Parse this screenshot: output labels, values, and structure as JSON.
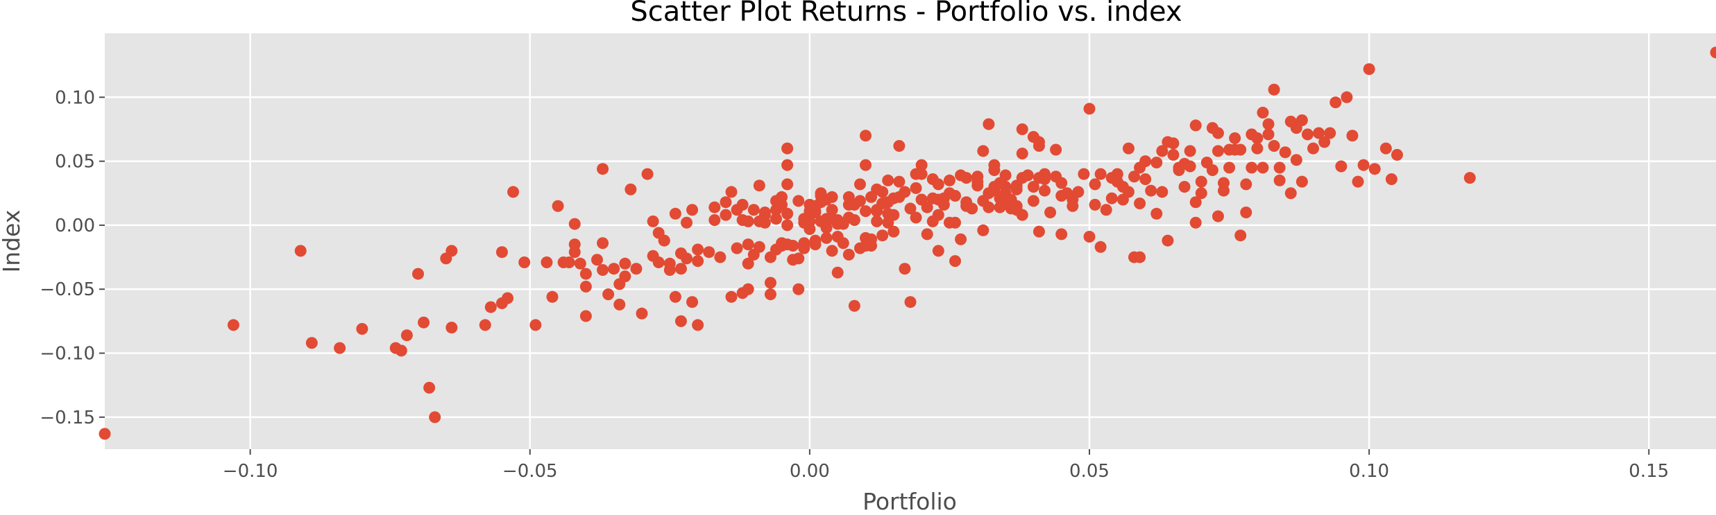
{
  "chart_data": {
    "type": "scatter",
    "title": "Scatter Plot Returns - Portfolio vs. index",
    "xlabel": "Portfolio",
    "ylabel": "Index",
    "xlim": [
      -0.126,
      0.162
    ],
    "ylim": [
      -0.175,
      0.15
    ],
    "xticks": [
      -0.1,
      -0.05,
      0.0,
      0.05,
      0.1,
      0.15
    ],
    "xtick_labels": [
      "−0.10",
      "−0.05",
      "0.00",
      "0.05",
      "0.10",
      "0.15"
    ],
    "yticks": [
      -0.15,
      -0.1,
      -0.05,
      0.0,
      0.05,
      0.1
    ],
    "ytick_labels": [
      "−0.15",
      "−0.10",
      "−0.05",
      "0.00",
      "0.05",
      "0.10"
    ],
    "grid": true,
    "style": "ggplot",
    "colors": {
      "background": "#e5e5e5",
      "points": "#e24a33",
      "grid": "#ffffff"
    },
    "points": [
      [
        -0.126,
        -0.163
      ],
      [
        -0.103,
        -0.078
      ],
      [
        -0.091,
        -0.02
      ],
      [
        -0.089,
        -0.092
      ],
      [
        -0.084,
        -0.096
      ],
      [
        -0.08,
        -0.081
      ],
      [
        -0.074,
        -0.096
      ],
      [
        -0.073,
        -0.098
      ],
      [
        -0.072,
        -0.086
      ],
      [
        -0.07,
        -0.038
      ],
      [
        -0.069,
        -0.076
      ],
      [
        -0.068,
        -0.127
      ],
      [
        -0.067,
        -0.15
      ],
      [
        -0.065,
        -0.026
      ],
      [
        -0.064,
        -0.02
      ],
      [
        -0.064,
        -0.08
      ],
      [
        -0.058,
        -0.078
      ],
      [
        -0.057,
        -0.064
      ],
      [
        -0.055,
        -0.021
      ],
      [
        -0.055,
        -0.061
      ],
      [
        -0.054,
        -0.057
      ],
      [
        -0.053,
        0.026
      ],
      [
        -0.051,
        -0.029
      ],
      [
        -0.049,
        -0.078
      ],
      [
        -0.047,
        -0.029
      ],
      [
        -0.046,
        -0.056
      ],
      [
        -0.045,
        0.015
      ],
      [
        -0.044,
        -0.029
      ],
      [
        -0.043,
        -0.029
      ],
      [
        -0.042,
        0.001
      ],
      [
        -0.042,
        -0.015
      ],
      [
        -0.042,
        -0.021
      ],
      [
        -0.041,
        -0.03
      ],
      [
        -0.04,
        -0.038
      ],
      [
        -0.04,
        -0.048
      ],
      [
        -0.04,
        -0.071
      ],
      [
        -0.038,
        -0.027
      ],
      [
        -0.037,
        -0.014
      ],
      [
        -0.037,
        -0.035
      ],
      [
        -0.037,
        0.044
      ],
      [
        -0.036,
        -0.054
      ],
      [
        -0.035,
        -0.034
      ],
      [
        -0.034,
        -0.046
      ],
      [
        -0.034,
        -0.062
      ],
      [
        -0.033,
        -0.04
      ],
      [
        -0.033,
        -0.03
      ],
      [
        -0.032,
        0.028
      ],
      [
        -0.031,
        -0.034
      ],
      [
        -0.03,
        -0.069
      ],
      [
        -0.029,
        0.04
      ],
      [
        -0.028,
        0.003
      ],
      [
        -0.028,
        -0.024
      ],
      [
        -0.027,
        -0.029
      ],
      [
        -0.027,
        -0.006
      ],
      [
        -0.026,
        -0.012
      ],
      [
        -0.026,
        -0.012
      ],
      [
        -0.025,
        -0.035
      ],
      [
        -0.025,
        -0.03
      ],
      [
        -0.024,
        -0.056
      ],
      [
        -0.024,
        0.009
      ],
      [
        -0.023,
        -0.022
      ],
      [
        -0.023,
        -0.034
      ],
      [
        -0.023,
        -0.075
      ],
      [
        -0.022,
        -0.026
      ],
      [
        -0.022,
        0.002
      ],
      [
        -0.021,
        0.012
      ],
      [
        -0.021,
        -0.06
      ],
      [
        -0.02,
        -0.019
      ],
      [
        -0.02,
        -0.078
      ],
      [
        -0.02,
        -0.028
      ],
      [
        -0.018,
        -0.021
      ],
      [
        -0.017,
        0.004
      ],
      [
        -0.017,
        0.014
      ],
      [
        -0.016,
        -0.025
      ],
      [
        -0.015,
        0.008
      ],
      [
        -0.015,
        0.018
      ],
      [
        -0.014,
        0.026
      ],
      [
        -0.014,
        -0.056
      ],
      [
        -0.013,
        -0.018
      ],
      [
        -0.013,
        0.012
      ],
      [
        -0.012,
        0.004
      ],
      [
        -0.012,
        0.016
      ],
      [
        -0.012,
        -0.053
      ],
      [
        -0.011,
        -0.05
      ],
      [
        -0.011,
        -0.015
      ],
      [
        -0.011,
        -0.03
      ],
      [
        -0.011,
        0.003
      ],
      [
        -0.01,
        0.012
      ],
      [
        -0.01,
        -0.023
      ],
      [
        -0.009,
        0.003
      ],
      [
        -0.009,
        0.031
      ],
      [
        -0.009,
        -0.017
      ],
      [
        -0.008,
        0.01
      ],
      [
        -0.008,
        0.008
      ],
      [
        -0.008,
        0.002
      ],
      [
        -0.007,
        -0.025
      ],
      [
        -0.007,
        -0.045
      ],
      [
        -0.007,
        -0.054
      ],
      [
        -0.006,
        -0.019
      ],
      [
        -0.006,
        0.005
      ],
      [
        -0.006,
        0.012
      ],
      [
        -0.006,
        0.019
      ],
      [
        -0.005,
        0.022
      ],
      [
        -0.005,
        0.016
      ],
      [
        -0.005,
        -0.014
      ],
      [
        -0.005,
        -0.016
      ],
      [
        -0.004,
        0.009
      ],
      [
        -0.004,
        0.0
      ],
      [
        -0.004,
        -0.015
      ],
      [
        -0.004,
        0.047
      ],
      [
        -0.004,
        0.06
      ],
      [
        -0.004,
        0.032
      ],
      [
        -0.003,
        -0.016
      ],
      [
        -0.003,
        -0.027
      ],
      [
        -0.002,
        0.019
      ],
      [
        -0.002,
        -0.05
      ],
      [
        -0.002,
        -0.026
      ],
      [
        -0.001,
        0.002
      ],
      [
        -0.001,
        -0.014
      ],
      [
        -0.001,
        0.005
      ],
      [
        -0.001,
        -0.018
      ],
      [
        -0.0,
        0.003
      ],
      [
        0.0,
        -0.003
      ],
      [
        0.0,
        0.016
      ],
      [
        0.0,
        0.011
      ],
      [
        0.001,
        0.01
      ],
      [
        0.001,
        0.011
      ],
      [
        0.001,
        -0.012
      ],
      [
        0.001,
        0.015
      ],
      [
        0.001,
        -0.015
      ],
      [
        0.002,
        0.003
      ],
      [
        0.002,
        0.018
      ],
      [
        0.002,
        0.023
      ],
      [
        0.002,
        0.025
      ],
      [
        0.003,
        0.005
      ],
      [
        0.003,
        -0.002
      ],
      [
        0.003,
        0.02
      ],
      [
        0.003,
        -0.01
      ],
      [
        0.004,
        -0.02
      ],
      [
        0.004,
        0.005
      ],
      [
        0.004,
        0.012
      ],
      [
        0.004,
        0.022
      ],
      [
        0.005,
        -0.037
      ],
      [
        0.005,
        0.001
      ],
      [
        0.005,
        -0.009
      ],
      [
        0.005,
        0.004
      ],
      [
        0.006,
        -0.014
      ],
      [
        0.006,
        0.001
      ],
      [
        0.007,
        0.022
      ],
      [
        0.007,
        0.016
      ],
      [
        0.007,
        0.006
      ],
      [
        0.007,
        -0.023
      ],
      [
        0.008,
        -0.063
      ],
      [
        0.008,
        0.004
      ],
      [
        0.008,
        0.016
      ],
      [
        0.009,
        -0.018
      ],
      [
        0.009,
        0.019
      ],
      [
        0.009,
        0.032
      ],
      [
        0.01,
        -0.016
      ],
      [
        0.01,
        -0.01
      ],
      [
        0.01,
        0.011
      ],
      [
        0.01,
        0.07
      ],
      [
        0.01,
        0.047
      ],
      [
        0.011,
        0.022
      ],
      [
        0.011,
        -0.016
      ],
      [
        0.011,
        -0.011
      ],
      [
        0.012,
        0.012
      ],
      [
        0.012,
        0.011
      ],
      [
        0.012,
        0.003
      ],
      [
        0.012,
        0.028
      ],
      [
        0.013,
        0.026
      ],
      [
        0.013,
        0.017
      ],
      [
        0.013,
        0.017
      ],
      [
        0.013,
        -0.008
      ],
      [
        0.014,
        0.035
      ],
      [
        0.014,
        0.002
      ],
      [
        0.014,
        0.018
      ],
      [
        0.014,
        0.009
      ],
      [
        0.015,
        0.008
      ],
      [
        0.015,
        0.021
      ],
      [
        0.015,
        -0.005
      ],
      [
        0.016,
        0.034
      ],
      [
        0.016,
        0.022
      ],
      [
        0.016,
        0.062
      ],
      [
        0.017,
        -0.034
      ],
      [
        0.017,
        0.026
      ],
      [
        0.018,
        -0.06
      ],
      [
        0.018,
        0.013
      ],
      [
        0.019,
        0.006
      ],
      [
        0.019,
        0.04
      ],
      [
        0.019,
        0.029
      ],
      [
        0.02,
        0.047
      ],
      [
        0.02,
        0.04
      ],
      [
        0.02,
        0.02
      ],
      [
        0.02,
        0.02
      ],
      [
        0.021,
        -0.007
      ],
      [
        0.021,
        0.014
      ],
      [
        0.022,
        0.036
      ],
      [
        0.022,
        0.021
      ],
      [
        0.022,
        0.003
      ],
      [
        0.023,
        -0.02
      ],
      [
        0.023,
        0.008
      ],
      [
        0.023,
        0.032
      ],
      [
        0.023,
        0.02
      ],
      [
        0.024,
        0.021
      ],
      [
        0.024,
        0.016
      ],
      [
        0.025,
        0.002
      ],
      [
        0.025,
        0.025
      ],
      [
        0.025,
        0.035
      ],
      [
        0.026,
        0.023
      ],
      [
        0.026,
        0.002
      ],
      [
        0.026,
        -0.028
      ],
      [
        0.027,
        -0.011
      ],
      [
        0.027,
        0.039
      ],
      [
        0.028,
        0.037
      ],
      [
        0.028,
        0.015
      ],
      [
        0.028,
        0.018
      ],
      [
        0.029,
        0.013
      ],
      [
        0.03,
        0.031
      ],
      [
        0.03,
        0.034
      ],
      [
        0.03,
        0.038
      ],
      [
        0.031,
        -0.004
      ],
      [
        0.031,
        0.058
      ],
      [
        0.031,
        0.019
      ],
      [
        0.032,
        0.079
      ],
      [
        0.032,
        0.014
      ],
      [
        0.032,
        0.025
      ],
      [
        0.033,
        0.03
      ],
      [
        0.033,
        0.043
      ],
      [
        0.033,
        0.047
      ],
      [
        0.033,
        0.027
      ],
      [
        0.034,
        0.021
      ],
      [
        0.034,
        0.033
      ],
      [
        0.034,
        0.014
      ],
      [
        0.035,
        0.03
      ],
      [
        0.035,
        0.025
      ],
      [
        0.035,
        0.039
      ],
      [
        0.035,
        0.017
      ],
      [
        0.036,
        0.02
      ],
      [
        0.036,
        0.013
      ],
      [
        0.037,
        0.031
      ],
      [
        0.037,
        0.012
      ],
      [
        0.037,
        0.028
      ],
      [
        0.037,
        0.015
      ],
      [
        0.038,
        0.075
      ],
      [
        0.038,
        0.056
      ],
      [
        0.038,
        0.008
      ],
      [
        0.038,
        0.037
      ],
      [
        0.039,
        0.039
      ],
      [
        0.04,
        0.03
      ],
      [
        0.04,
        0.019
      ],
      [
        0.04,
        0.069
      ],
      [
        0.041,
        -0.005
      ],
      [
        0.041,
        0.037
      ],
      [
        0.041,
        0.062
      ],
      [
        0.041,
        0.065
      ],
      [
        0.042,
        0.027
      ],
      [
        0.042,
        0.036
      ],
      [
        0.042,
        0.04
      ],
      [
        0.043,
        0.01
      ],
      [
        0.044,
        0.059
      ],
      [
        0.044,
        0.038
      ],
      [
        0.045,
        0.023
      ],
      [
        0.045,
        0.033
      ],
      [
        0.045,
        -0.007
      ],
      [
        0.046,
        0.025
      ],
      [
        0.047,
        0.02
      ],
      [
        0.047,
        0.015
      ],
      [
        0.048,
        0.026
      ],
      [
        0.049,
        0.04
      ],
      [
        0.05,
        -0.009
      ],
      [
        0.05,
        0.091
      ],
      [
        0.051,
        0.032
      ],
      [
        0.051,
        0.016
      ],
      [
        0.052,
        -0.017
      ],
      [
        0.052,
        0.04
      ],
      [
        0.053,
        0.012
      ],
      [
        0.054,
        0.021
      ],
      [
        0.054,
        0.037
      ],
      [
        0.055,
        0.034
      ],
      [
        0.055,
        0.04
      ],
      [
        0.056,
        0.02
      ],
      [
        0.056,
        0.03
      ],
      [
        0.057,
        0.026
      ],
      [
        0.057,
        0.06
      ],
      [
        0.058,
        0.038
      ],
      [
        0.058,
        -0.025
      ],
      [
        0.059,
        0.017
      ],
      [
        0.059,
        0.045
      ],
      [
        0.059,
        -0.025
      ],
      [
        0.06,
        0.036
      ],
      [
        0.06,
        0.05
      ],
      [
        0.061,
        0.027
      ],
      [
        0.062,
        0.009
      ],
      [
        0.062,
        0.049
      ],
      [
        0.063,
        0.026
      ],
      [
        0.063,
        0.058
      ],
      [
        0.064,
        0.065
      ],
      [
        0.064,
        -0.012
      ],
      [
        0.065,
        0.064
      ],
      [
        0.065,
        0.055
      ],
      [
        0.066,
        0.045
      ],
      [
        0.066,
        0.043
      ],
      [
        0.067,
        0.048
      ],
      [
        0.067,
        0.03
      ],
      [
        0.068,
        0.058
      ],
      [
        0.068,
        0.046
      ],
      [
        0.069,
        0.002
      ],
      [
        0.069,
        0.078
      ],
      [
        0.069,
        0.018
      ],
      [
        0.07,
        0.025
      ],
      [
        0.07,
        0.034
      ],
      [
        0.071,
        0.049
      ],
      [
        0.072,
        0.043
      ],
      [
        0.072,
        0.076
      ],
      [
        0.073,
        0.072
      ],
      [
        0.073,
        0.058
      ],
      [
        0.073,
        0.007
      ],
      [
        0.074,
        0.033
      ],
      [
        0.074,
        0.027
      ],
      [
        0.075,
        0.059
      ],
      [
        0.075,
        0.045
      ],
      [
        0.076,
        0.068
      ],
      [
        0.076,
        0.059
      ],
      [
        0.077,
        0.059
      ],
      [
        0.077,
        -0.008
      ],
      [
        0.078,
        0.01
      ],
      [
        0.078,
        0.032
      ],
      [
        0.079,
        0.045
      ],
      [
        0.079,
        0.071
      ],
      [
        0.08,
        0.06
      ],
      [
        0.08,
        0.068
      ],
      [
        0.081,
        0.088
      ],
      [
        0.081,
        0.045
      ],
      [
        0.082,
        0.071
      ],
      [
        0.082,
        0.079
      ],
      [
        0.083,
        0.062
      ],
      [
        0.083,
        0.106
      ],
      [
        0.084,
        0.045
      ],
      [
        0.084,
        0.035
      ],
      [
        0.085,
        0.057
      ],
      [
        0.086,
        0.081
      ],
      [
        0.086,
        0.025
      ],
      [
        0.087,
        0.076
      ],
      [
        0.087,
        0.051
      ],
      [
        0.088,
        0.034
      ],
      [
        0.088,
        0.082
      ],
      [
        0.089,
        0.071
      ],
      [
        0.09,
        0.06
      ],
      [
        0.091,
        0.072
      ],
      [
        0.092,
        0.065
      ],
      [
        0.093,
        0.072
      ],
      [
        0.094,
        0.096
      ],
      [
        0.095,
        0.046
      ],
      [
        0.096,
        0.1
      ],
      [
        0.097,
        0.07
      ],
      [
        0.098,
        0.034
      ],
      [
        0.099,
        0.047
      ],
      [
        0.1,
        0.122
      ],
      [
        0.101,
        0.044
      ],
      [
        0.103,
        0.06
      ],
      [
        0.104,
        0.036
      ],
      [
        0.105,
        0.055
      ],
      [
        0.118,
        0.037
      ],
      [
        0.162,
        0.135
      ]
    ]
  }
}
